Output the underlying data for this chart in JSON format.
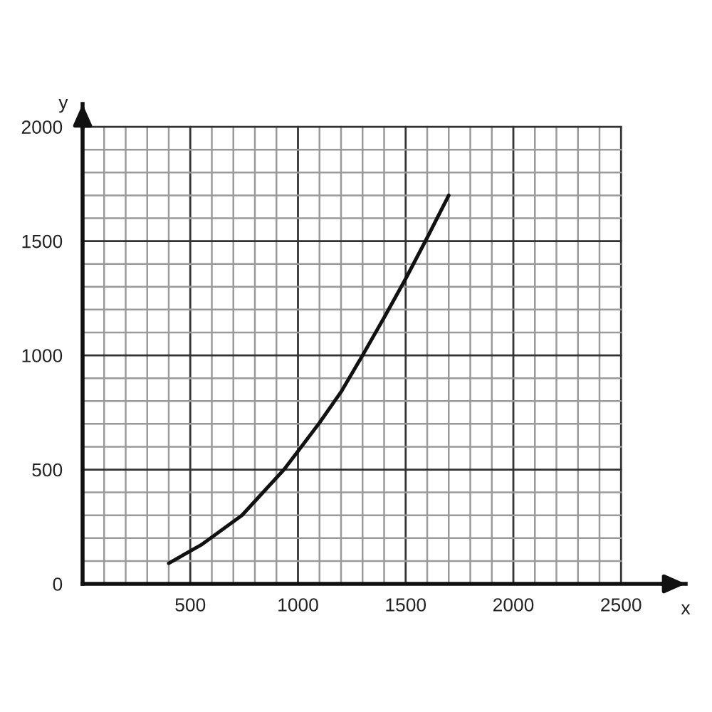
{
  "chart_data": {
    "type": "line",
    "xlabel": "x",
    "ylabel": "y",
    "series": [
      {
        "color": "#111111",
        "x": [
          400,
          550,
          740,
          935,
          1000,
          1100,
          1200,
          1300,
          1400,
          1500,
          1600,
          1700
        ],
        "values": [
          90,
          170,
          300,
          500,
          580,
          705,
          840,
          1000,
          1165,
          1335,
          1515,
          1700
        ]
      }
    ],
    "xlim": [
      0,
      2800
    ],
    "ylim": [
      0,
      2100
    ],
    "xticks": [
      {
        "value": 100,
        "label": null
      },
      {
        "value": 200,
        "label": null
      },
      {
        "value": 300,
        "label": null
      },
      {
        "value": 400,
        "label": null
      },
      500,
      {
        "value": 600,
        "label": null
      },
      {
        "value": 700,
        "label": null
      },
      {
        "value": 800,
        "label": null
      },
      {
        "value": 900,
        "label": null
      },
      1000,
      {
        "value": 1100,
        "label": null
      },
      {
        "value": 1200,
        "label": null
      },
      {
        "value": 1300,
        "label": null
      },
      {
        "value": 1400,
        "label": null
      },
      1500,
      {
        "value": 1600,
        "label": null
      },
      {
        "value": 1700,
        "label": null
      },
      {
        "value": 1800,
        "label": null
      },
      {
        "value": 1900,
        "label": null
      },
      2000,
      {
        "value": 2100,
        "label": null
      },
      {
        "value": 2200,
        "label": null
      },
      {
        "value": 2300,
        "label": null
      },
      {
        "value": 2400,
        "label": null
      },
      2500
    ],
    "yticks": [
      0,
      {
        "value": 100,
        "label": null
      },
      {
        "value": 200,
        "label": null
      },
      {
        "value": 300,
        "label": null
      },
      {
        "value": 400,
        "label": null
      },
      500,
      {
        "value": 600,
        "label": null
      },
      {
        "value": 700,
        "label": null
      },
      {
        "value": 800,
        "label": null
      },
      {
        "value": 900,
        "label": null
      },
      1000,
      {
        "value": 1100,
        "label": null
      },
      {
        "value": 1200,
        "label": null
      },
      {
        "value": 1300,
        "label": null
      },
      {
        "value": 1400,
        "label": null
      },
      1500,
      {
        "value": 1600,
        "label": null
      },
      {
        "value": 1700,
        "label": null
      },
      {
        "value": 1800,
        "label": null
      },
      {
        "value": 1900,
        "label": null
      },
      2000
    ],
    "grid": true,
    "line_style": "solid"
  }
}
